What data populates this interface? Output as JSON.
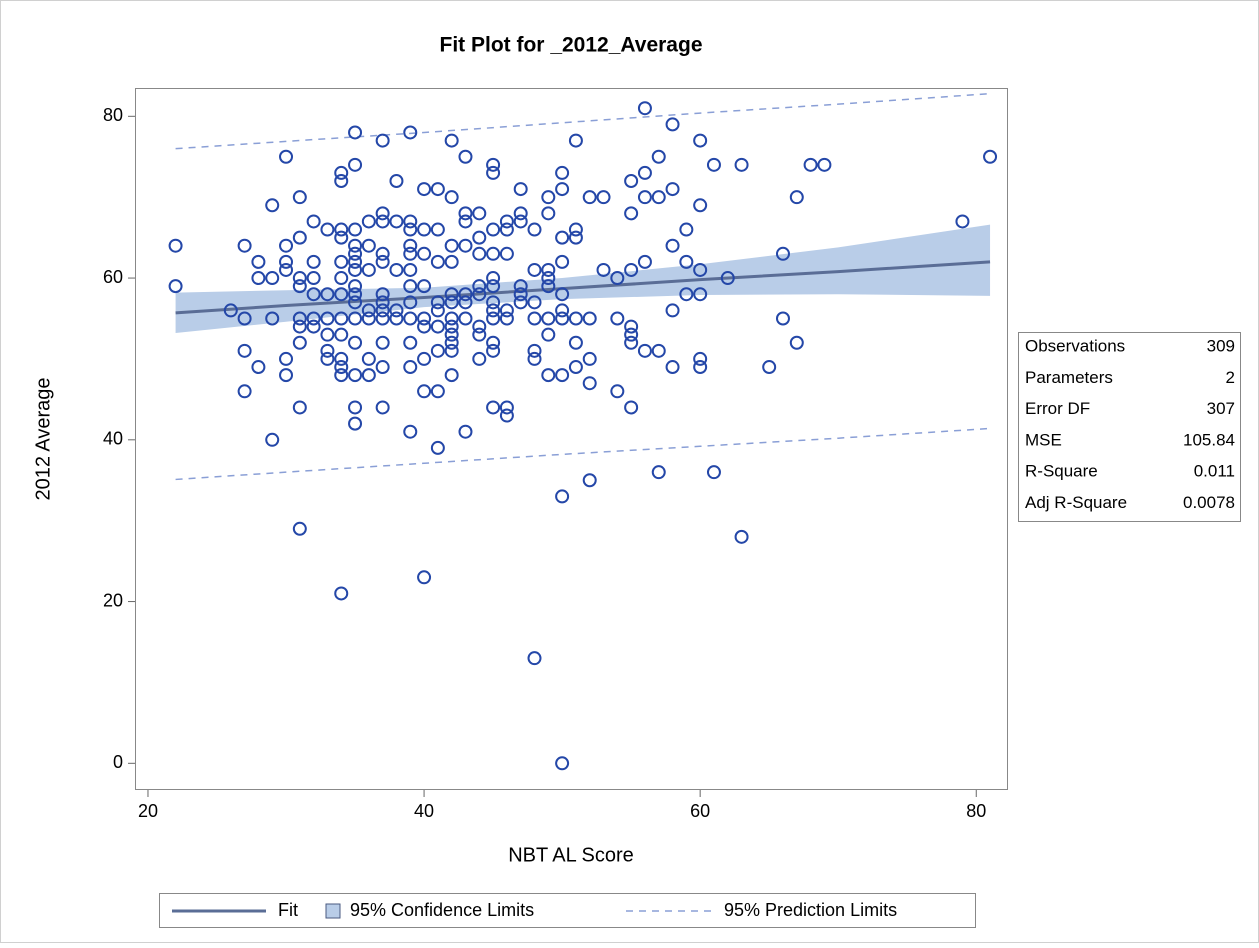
{
  "chart_data": {
    "type": "scatter",
    "title": "Fit Plot for _2012_Average",
    "xlabel": "NBT AL Score",
    "ylabel": "2012 Average",
    "xlim": [
      19.06,
      82.3
    ],
    "ylim": [
      -3.3,
      83.5
    ],
    "xticks": [
      20,
      40,
      60,
      80
    ],
    "yticks": [
      0,
      20,
      40,
      60,
      80
    ],
    "marker_color": "#2447a8",
    "x": [
      22,
      22,
      26,
      27,
      27,
      27,
      27,
      28,
      28,
      28,
      29,
      29,
      29,
      29,
      30,
      30,
      30,
      30,
      30,
      30,
      31,
      31,
      31,
      31,
      31,
      31,
      31,
      31,
      31,
      32,
      32,
      32,
      32,
      32,
      32,
      33,
      33,
      33,
      33,
      33,
      33,
      34,
      34,
      34,
      34,
      34,
      34,
      34,
      34,
      34,
      34,
      34,
      34,
      34,
      35,
      35,
      35,
      35,
      35,
      35,
      35,
      35,
      35,
      35,
      35,
      35,
      35,
      35,
      35,
      36,
      36,
      36,
      36,
      36,
      36,
      36,
      37,
      37,
      37,
      37,
      37,
      37,
      37,
      37,
      37,
      37,
      37,
      37,
      38,
      38,
      38,
      38,
      38,
      39,
      39,
      39,
      39,
      39,
      39,
      39,
      39,
      39,
      39,
      39,
      39,
      40,
      40,
      40,
      40,
      40,
      40,
      40,
      40,
      40,
      41,
      41,
      41,
      41,
      41,
      41,
      41,
      41,
      41,
      42,
      42,
      42,
      42,
      42,
      42,
      42,
      42,
      42,
      42,
      42,
      42,
      43,
      43,
      43,
      43,
      43,
      43,
      43,
      43,
      44,
      44,
      44,
      44,
      44,
      44,
      44,
      44,
      45,
      45,
      45,
      45,
      45,
      45,
      45,
      45,
      45,
      45,
      45,
      45,
      46,
      46,
      46,
      46,
      46,
      46,
      46,
      47,
      47,
      47,
      47,
      47,
      47,
      48,
      48,
      48,
      48,
      48,
      48,
      48,
      49,
      49,
      49,
      49,
      49,
      49,
      49,
      49,
      50,
      50,
      50,
      50,
      50,
      50,
      50,
      50,
      50,
      50,
      51,
      51,
      51,
      51,
      51,
      51,
      52,
      52,
      52,
      52,
      52,
      53,
      53,
      54,
      54,
      54,
      55,
      55,
      55,
      55,
      55,
      55,
      55,
      56,
      56,
      56,
      56,
      56,
      57,
      57,
      57,
      57,
      58,
      58,
      58,
      58,
      58,
      59,
      59,
      59,
      60,
      60,
      60,
      60,
      60,
      60,
      61,
      61,
      62,
      63,
      63,
      65,
      66,
      66,
      67,
      67,
      68,
      69,
      79,
      81
    ],
    "values": [
      64,
      59,
      56,
      64,
      55,
      51,
      46,
      62,
      60,
      49,
      69,
      60,
      55,
      40,
      75,
      64,
      62,
      61,
      50,
      48,
      70,
      65,
      60,
      59,
      55,
      54,
      52,
      44,
      29,
      67,
      62,
      60,
      58,
      55,
      54,
      66,
      58,
      55,
      53,
      51,
      50,
      73,
      72,
      66,
      65,
      62,
      60,
      58,
      55,
      53,
      50,
      49,
      48,
      21,
      78,
      74,
      66,
      64,
      63,
      62,
      61,
      59,
      58,
      57,
      55,
      52,
      48,
      44,
      42,
      67,
      64,
      61,
      56,
      55,
      50,
      48,
      77,
      68,
      67,
      63,
      62,
      58,
      57,
      56,
      55,
      52,
      49,
      44,
      72,
      67,
      61,
      56,
      55,
      78,
      67,
      66,
      64,
      63,
      61,
      59,
      57,
      55,
      52,
      49,
      41,
      71,
      66,
      63,
      59,
      55,
      54,
      50,
      46,
      23,
      71,
      66,
      62,
      57,
      56,
      54,
      51,
      46,
      39,
      77,
      70,
      64,
      62,
      58,
      57,
      55,
      54,
      53,
      52,
      51,
      48,
      75,
      68,
      67,
      64,
      58,
      57,
      55,
      41,
      68,
      65,
      63,
      59,
      58,
      54,
      53,
      50,
      74,
      73,
      66,
      63,
      60,
      59,
      57,
      56,
      55,
      52,
      51,
      44,
      67,
      66,
      63,
      56,
      55,
      44,
      43,
      71,
      68,
      67,
      59,
      58,
      57,
      66,
      61,
      57,
      55,
      51,
      50,
      13,
      70,
      68,
      61,
      60,
      59,
      55,
      53,
      48,
      73,
      71,
      65,
      62,
      58,
      56,
      55,
      48,
      33,
      0,
      77,
      66,
      65,
      55,
      52,
      49,
      70,
      55,
      50,
      47,
      35,
      70,
      61,
      60,
      55,
      46,
      72,
      68,
      61,
      54,
      53,
      52,
      44,
      81,
      73,
      70,
      62,
      51,
      75,
      70,
      51,
      36,
      79,
      71,
      64,
      56,
      49,
      66,
      62,
      58,
      77,
      69,
      61,
      58,
      50,
      49,
      74,
      36,
      60,
      74,
      28,
      49,
      63,
      55,
      70,
      52,
      74,
      74,
      67,
      75
    ],
    "series": [
      {
        "name": "Fit",
        "color": "#5a6d96",
        "x": [
          22,
          30,
          40,
          50,
          60,
          70,
          81
        ],
        "values": [
          55.7,
          56.6,
          57.6,
          58.7,
          59.8,
          60.8,
          62.0
        ]
      },
      {
        "name": "95% Confidence Limits",
        "color": "#b9cde8",
        "x": [
          22,
          30,
          40,
          50,
          60,
          70,
          81
        ],
        "lower": [
          53.2,
          54.6,
          56.4,
          57.4,
          57.9,
          58.0,
          57.8
        ],
        "upper": [
          58.2,
          58.5,
          58.8,
          60.0,
          61.7,
          63.8,
          66.6
        ]
      },
      {
        "name": "95% Prediction Limits",
        "color": "#8a9fd6",
        "x": [
          22,
          30,
          40,
          50,
          60,
          70,
          81
        ],
        "lower": [
          35.1,
          36.0,
          37.1,
          38.2,
          39.2,
          40.2,
          41.4
        ],
        "upper": [
          76.0,
          76.9,
          78.0,
          79.2,
          80.4,
          81.5,
          82.8
        ]
      }
    ],
    "stats": [
      [
        "Observations",
        "309"
      ],
      [
        "Parameters",
        "2"
      ],
      [
        "Error DF",
        "307"
      ],
      [
        "MSE",
        "105.84"
      ],
      [
        "R-Square",
        "0.011"
      ],
      [
        "Adj R-Square",
        "0.0078"
      ]
    ]
  }
}
